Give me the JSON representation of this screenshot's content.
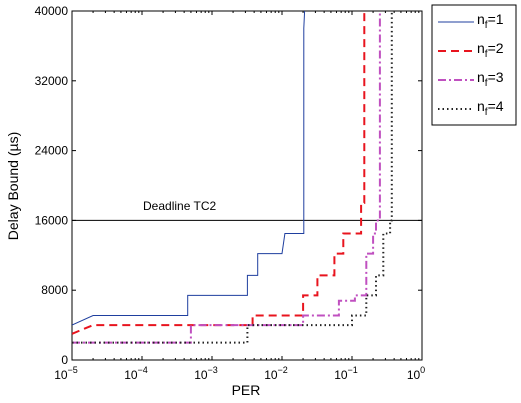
{
  "chart_data": {
    "type": "line",
    "title": "",
    "xlabel": "PER",
    "ylabel": "Delay Bound (µs)",
    "xscale": "log",
    "xlim": [
      1e-05,
      1
    ],
    "ylim": [
      0,
      40000
    ],
    "grid": false,
    "x_ticks": [
      {
        "value": 1e-05,
        "base": "10",
        "exp": "−5"
      },
      {
        "value": 0.0001,
        "base": "10",
        "exp": "−4"
      },
      {
        "value": 0.001,
        "base": "10",
        "exp": "−3"
      },
      {
        "value": 0.01,
        "base": "10",
        "exp": "−2"
      },
      {
        "value": 0.1,
        "base": "10",
        "exp": "−1"
      },
      {
        "value": 1,
        "base": "10",
        "exp": "0"
      }
    ],
    "y_ticks": [
      {
        "value": 0,
        "label": "0"
      },
      {
        "value": 8000,
        "label": "8000"
      },
      {
        "value": 16000,
        "label": "16000"
      },
      {
        "value": 24000,
        "label": "24000"
      },
      {
        "value": 32000,
        "label": "32000"
      },
      {
        "value": 40000,
        "label": "40000"
      }
    ],
    "legend_position": "top-right",
    "series": [
      {
        "name": "n",
        "sub": "f",
        "suffix": "=1",
        "color": "#1f3f9f",
        "dash": "solid",
        "x": [
          1e-05,
          2e-05,
          2e-05,
          0.00045,
          0.00045,
          0.0032,
          0.0032,
          0.0045,
          0.0045,
          0.01,
          0.01,
          0.011,
          0.011,
          0.0205,
          0.0205,
          0.021
        ],
        "y": [
          4000,
          5100,
          5100,
          5100,
          7400,
          7400,
          9700,
          9700,
          12200,
          12200,
          12200,
          14500,
          14500,
          14500,
          38000,
          40000
        ]
      },
      {
        "name": "n",
        "sub": "f",
        "suffix": "=2",
        "color": "#e8141e",
        "dash": "8,5",
        "x": [
          1e-05,
          2e-05,
          2e-05,
          0.0038,
          0.0038,
          0.02,
          0.02,
          0.032,
          0.032,
          0.056,
          0.056,
          0.075,
          0.075,
          0.1,
          0.1,
          0.135,
          0.135,
          0.15,
          0.15
        ],
        "y": [
          3000,
          4000,
          4000,
          4000,
          5100,
          5100,
          7400,
          7400,
          9700,
          9700,
          12200,
          12200,
          14500,
          14500,
          14500,
          14500,
          18000,
          18000,
          40000
        ]
      },
      {
        "name": "n",
        "sub": "f",
        "suffix": "=3",
        "color": "#c050c0",
        "dash": "8,3,2,3",
        "x": [
          1e-05,
          0.0005,
          0.0005,
          0.02,
          0.02,
          0.065,
          0.065,
          0.11,
          0.11,
          0.16,
          0.16,
          0.2,
          0.2,
          0.22,
          0.22,
          0.25,
          0.25
        ],
        "y": [
          2000,
          2000,
          4000,
          4000,
          5100,
          5100,
          6800,
          6800,
          7400,
          7400,
          12200,
          12200,
          14500,
          14500,
          16000,
          16000,
          40000
        ]
      },
      {
        "name": "n",
        "sub": "f",
        "suffix": "=4",
        "color": "#222222",
        "dash": "1.5,3",
        "x": [
          1e-05,
          0.0032,
          0.0032,
          0.1,
          0.1,
          0.16,
          0.16,
          0.22,
          0.22,
          0.28,
          0.28,
          0.35,
          0.35,
          0.37,
          0.37
        ],
        "y": [
          2000,
          2000,
          4000,
          4000,
          5100,
          5100,
          7400,
          7400,
          9700,
          9700,
          14500,
          14500,
          16000,
          16000,
          40000
        ]
      }
    ],
    "deadline": {
      "label": "Deadline TC2",
      "y": 16000,
      "color": "#000000"
    }
  }
}
